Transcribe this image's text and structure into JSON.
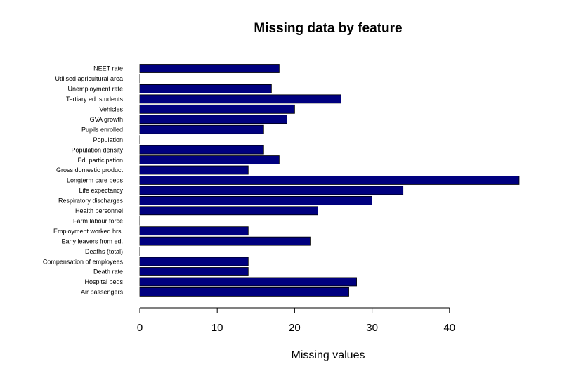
{
  "chart_data": {
    "type": "bar",
    "orientation": "horizontal",
    "title": "Missing data by feature",
    "xlabel": "Missing values",
    "ylabel": "",
    "xlim": [
      0,
      49
    ],
    "xticks": [
      0,
      10,
      20,
      30,
      40
    ],
    "grid": false,
    "bar_color": "#00007F",
    "categories": [
      "NEET rate",
      "Utilised agricultural area",
      "Unemployment rate",
      "Tertiary ed. students",
      "Vehicles",
      "GVA growth",
      "Pupils enrolled",
      "Population",
      "Population density",
      "Ed. participation",
      "Gross domestic product",
      "Longterm care beds",
      "Life expectancy",
      "Respiratory discharges",
      "Health personnel",
      "Farm labour force",
      "Employment worked hrs.",
      "Early leavers from ed.",
      "Deaths (total)",
      "Compensation of employees",
      "Death rate",
      "Hospital beds",
      "Air passengers"
    ],
    "values": [
      18,
      0,
      17,
      26,
      20,
      19,
      16,
      0,
      16,
      18,
      14,
      49,
      34,
      30,
      23,
      0,
      14,
      22,
      0,
      14,
      14,
      28,
      27
    ]
  }
}
